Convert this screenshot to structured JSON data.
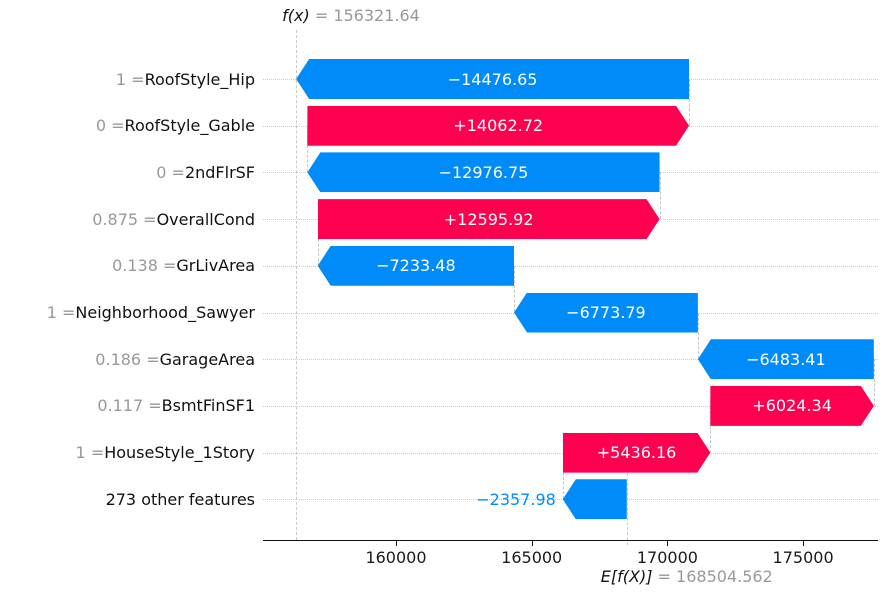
{
  "chart_data": {
    "type": "waterfall",
    "library_style": "shap-waterfall",
    "fx_annotation": {
      "name": "f(x)",
      "equals_value": " = 156321.64"
    },
    "ef_annotation": {
      "name": "E[f(X)]",
      "equals_value": " = 168504.562"
    },
    "fx": 156321.64,
    "base_value": 168504.562,
    "xlim": [
      155100,
      177760
    ],
    "x_ticks": [
      {
        "v": 160000,
        "label": "160000"
      },
      {
        "v": 165000,
        "label": "165000"
      },
      {
        "v": 170000,
        "label": "170000"
      },
      {
        "v": 175000,
        "label": "175000"
      }
    ],
    "rows": [
      {
        "value": "1",
        "feature": "RoofStyle_Hip",
        "contribution": -14476.65,
        "label": "−14476.65"
      },
      {
        "value": "0",
        "feature": "RoofStyle_Gable",
        "contribution": 14062.72,
        "label": "+14062.72"
      },
      {
        "value": "0",
        "feature": "2ndFlrSF",
        "contribution": -12976.75,
        "label": "−12976.75"
      },
      {
        "value": "0.875",
        "feature": "OverallCond",
        "contribution": 12595.92,
        "label": "+12595.92"
      },
      {
        "value": "0.138",
        "feature": "GrLivArea",
        "contribution": -7233.48,
        "label": "−7233.48"
      },
      {
        "value": "1",
        "feature": "Neighborhood_Sawyer",
        "contribution": -6773.79,
        "label": "−6773.79"
      },
      {
        "value": "0.186",
        "feature": "GarageArea",
        "contribution": -6483.41,
        "label": "−6483.41"
      },
      {
        "value": "0.117",
        "feature": "BsmtFinSF1",
        "contribution": 6024.34,
        "label": "+6024.34"
      },
      {
        "value": "1",
        "feature": "HouseStyle_1Story",
        "contribution": 5436.16,
        "label": "+5436.16"
      },
      {
        "value": "",
        "feature": "273 other features",
        "contribution": -2357.98,
        "label": "−2357.98"
      }
    ],
    "colors": {
      "positive": "#ff0051",
      "negative": "#008bfb",
      "muted_text": "#999999",
      "gridline": "#cccccc",
      "dashline": "#c9c9c9"
    },
    "legend_position": "none",
    "grid": "horizontal-dotted"
  }
}
